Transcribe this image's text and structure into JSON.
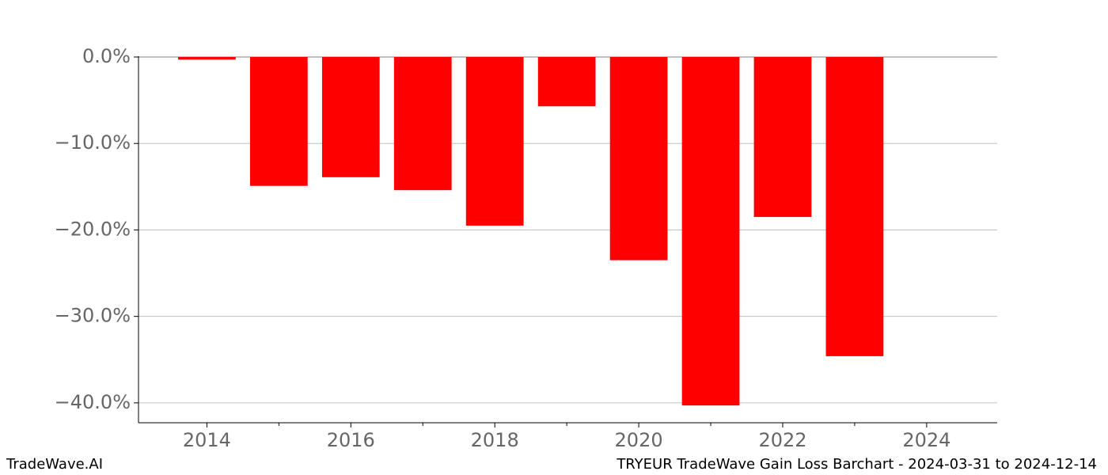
{
  "chart_data": {
    "type": "bar",
    "title": "TRYEUR TradeWave Gain Loss Barchart - 2024-03-31 to 2024-12-14",
    "source": "TradeWave.AI",
    "x": [
      2014,
      2015,
      2016,
      2017,
      2018,
      2019,
      2020,
      2021,
      2022,
      2023
    ],
    "values": [
      -0.3,
      -14.9,
      -13.9,
      -15.4,
      -19.5,
      -5.7,
      -23.5,
      -40.3,
      -18.5,
      -34.6
    ],
    "color": "#ff0000",
    "xlim": [
      2013.05,
      2024.98
    ],
    "xticks": [
      2014,
      2016,
      2018,
      2020,
      2022,
      2024
    ],
    "xminorticks": [
      2015,
      2017,
      2019,
      2021,
      2023
    ],
    "ylim": [
      -42.3,
      0
    ],
    "yticks": [
      {
        "value": 0,
        "label": "0.0%"
      },
      {
        "value": -10,
        "label": "−10.0%"
      },
      {
        "value": -20,
        "label": "−20.0%"
      },
      {
        "value": -30,
        "label": "−30.0%"
      },
      {
        "value": -40,
        "label": "−40.0%"
      }
    ],
    "grid": true
  }
}
